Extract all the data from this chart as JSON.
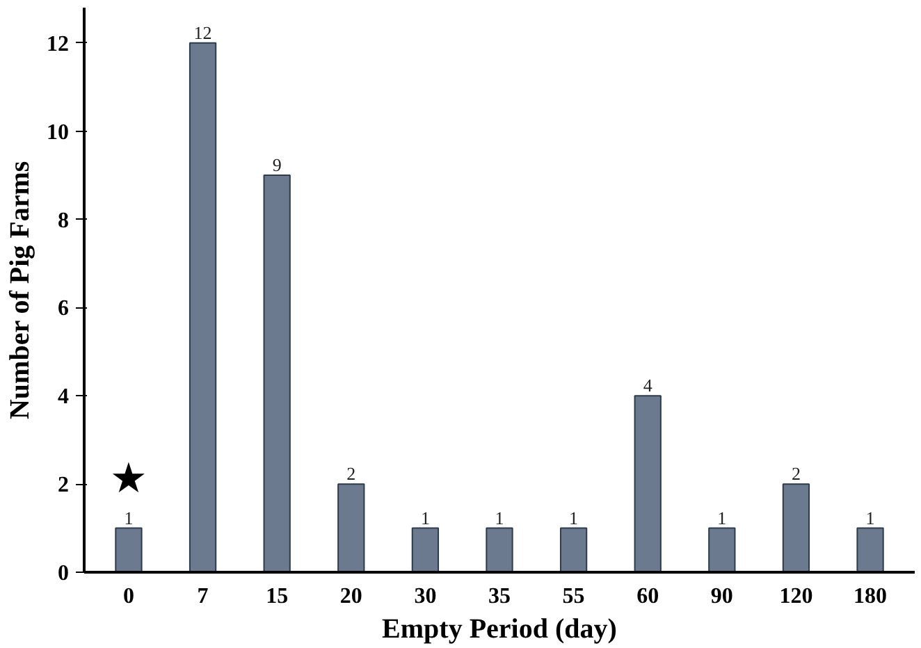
{
  "chart_data": {
    "type": "bar",
    "xlabel": "Empty Period (day)",
    "ylabel": "Number of Pig Farms",
    "categories": [
      "0",
      "7",
      "15",
      "20",
      "30",
      "35",
      "55",
      "60",
      "90",
      "120",
      "180"
    ],
    "values": [
      1,
      12,
      9,
      2,
      1,
      1,
      1,
      4,
      1,
      2,
      1
    ],
    "color": "#6b7a8f",
    "ylim": [
      0,
      12.8
    ],
    "yticks": [
      0,
      2,
      4,
      6,
      8,
      10,
      12
    ],
    "data_labels": true,
    "grid": false,
    "annotations": [
      "★"
    ]
  }
}
